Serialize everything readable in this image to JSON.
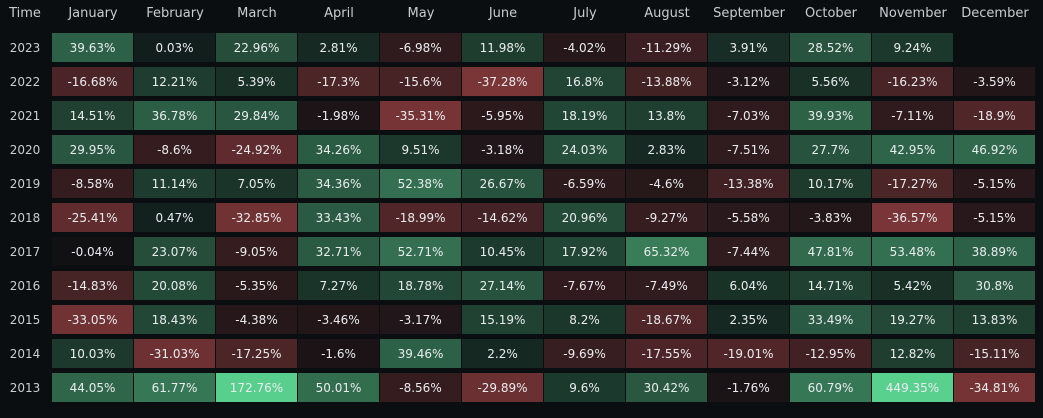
{
  "corner_label": "Time",
  "colors": {
    "background": "#0b0e11",
    "neutral": "#0b0e11",
    "positive": "#5ad08f",
    "negative": "#7a3537"
  },
  "chart_data": {
    "type": "heatmap",
    "title": "",
    "xlabel": "",
    "ylabel": "",
    "columns": [
      "January",
      "February",
      "March",
      "April",
      "May",
      "June",
      "July",
      "August",
      "September",
      "October",
      "November",
      "December"
    ],
    "rows": [
      {
        "year": "2023",
        "values": [
          39.63,
          0.03,
          22.96,
          2.81,
          -6.98,
          11.98,
          -4.02,
          -11.29,
          3.91,
          28.52,
          9.24,
          null
        ]
      },
      {
        "year": "2022",
        "values": [
          -16.68,
          12.21,
          5.39,
          -17.3,
          -15.6,
          -37.28,
          16.8,
          -13.88,
          -3.12,
          5.56,
          -16.23,
          -3.59
        ]
      },
      {
        "year": "2021",
        "values": [
          14.51,
          36.78,
          29.84,
          -1.98,
          -35.31,
          -5.95,
          18.19,
          13.8,
          -7.03,
          39.93,
          -7.11,
          -18.9
        ]
      },
      {
        "year": "2020",
        "values": [
          29.95,
          -8.6,
          -24.92,
          34.26,
          9.51,
          -3.18,
          24.03,
          2.83,
          -7.51,
          27.7,
          42.95,
          46.92
        ]
      },
      {
        "year": "2019",
        "values": [
          -8.58,
          11.14,
          7.05,
          34.36,
          52.38,
          26.67,
          -6.59,
          -4.6,
          -13.38,
          10.17,
          -17.27,
          -5.15
        ]
      },
      {
        "year": "2018",
        "values": [
          -25.41,
          0.47,
          -32.85,
          33.43,
          -18.99,
          -14.62,
          20.96,
          -9.27,
          -5.58,
          -3.83,
          -36.57,
          -5.15
        ]
      },
      {
        "year": "2017",
        "values": [
          -0.04,
          23.07,
          -9.05,
          32.71,
          52.71,
          10.45,
          17.92,
          65.32,
          -7.44,
          47.81,
          53.48,
          38.89
        ]
      },
      {
        "year": "2016",
        "values": [
          -14.83,
          20.08,
          -5.35,
          7.27,
          18.78,
          27.14,
          -7.67,
          -7.49,
          6.04,
          14.71,
          5.42,
          30.8
        ]
      },
      {
        "year": "2015",
        "values": [
          -33.05,
          18.43,
          -4.38,
          -3.46,
          -3.17,
          15.19,
          8.2,
          -18.67,
          2.35,
          33.49,
          19.27,
          13.83
        ]
      },
      {
        "year": "2014",
        "values": [
          10.03,
          -31.03,
          -17.25,
          -1.6,
          39.46,
          2.2,
          -9.69,
          -17.55,
          -19.01,
          -12.95,
          12.82,
          -15.11
        ]
      },
      {
        "year": "2013",
        "values": [
          44.05,
          61.77,
          172.76,
          50.01,
          -8.56,
          -29.89,
          9.6,
          30.42,
          -1.76,
          60.79,
          449.35,
          -34.81
        ]
      }
    ],
    "value_suffix": "%",
    "legend": "none",
    "grid": false
  }
}
